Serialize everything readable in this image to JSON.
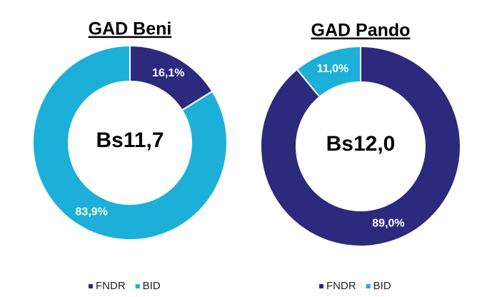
{
  "chart_data": [
    {
      "type": "donut",
      "title": "GAD Beni",
      "center_label": "Bs11,7",
      "categories": [
        "FNDR",
        "BID"
      ],
      "values": [
        16.1,
        83.9
      ],
      "value_labels": [
        "16,1%",
        "83,9%"
      ],
      "colors": [
        "#2b2a7c",
        "#1cb0d9"
      ]
    },
    {
      "type": "donut",
      "title": "GAD Pando",
      "center_label": "Bs12,0",
      "categories": [
        "FNDR",
        "BID"
      ],
      "values": [
        89.0,
        11.0
      ],
      "value_labels": [
        "89,0%",
        "11,0%"
      ],
      "colors": [
        "#2b2a7c",
        "#1cb0d9"
      ]
    }
  ]
}
